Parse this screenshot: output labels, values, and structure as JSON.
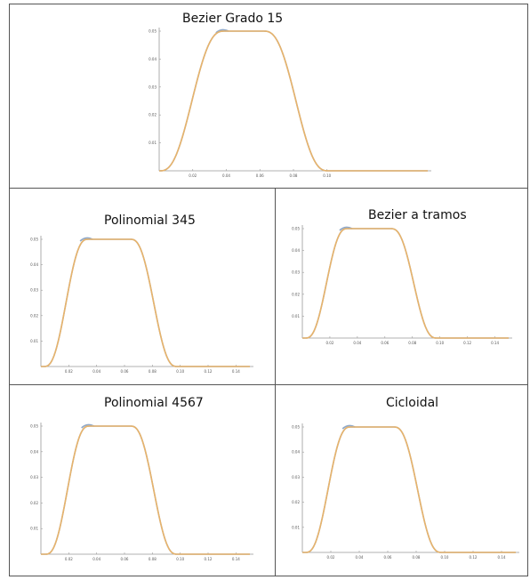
{
  "chart_data": [
    {
      "type": "line",
      "title": "Bezier Grado 15",
      "xlim": [
        0,
        0.16
      ],
      "ylim": [
        0,
        0.05
      ],
      "x_ticks": [
        0.02,
        0.04,
        0.06,
        0.08,
        0.1
      ],
      "y_ticks": [
        0.01,
        0.02,
        0.03,
        0.04,
        0.05
      ],
      "x_tick_labels": [
        "0.02",
        "0.04",
        "0.06",
        "0.08",
        "0.10"
      ],
      "y_tick_labels": [
        "0.01",
        "0.02",
        "0.03",
        "0.04",
        "0.05"
      ],
      "profile": {
        "rise_start": 0.0,
        "rise_end": 0.039,
        "dwell_end": 0.062,
        "return_end": 0.101,
        "x_end": 0.16
      },
      "series": [
        {
          "values_desc": "rise-dwell-return",
          "color": "#e8b36a"
        },
        {
          "color": "#8fa8c8"
        }
      ]
    },
    {
      "type": "line",
      "title": "Polinomial 345",
      "xlim": [
        0,
        0.15
      ],
      "ylim": [
        0,
        0.05
      ],
      "x_ticks": [
        0.02,
        0.04,
        0.06,
        0.08,
        0.1,
        0.12,
        0.14
      ],
      "y_ticks": [
        0.01,
        0.02,
        0.03,
        0.04,
        0.05
      ],
      "x_tick_labels": [
        "0.02",
        "0.04",
        "0.06",
        "0.08",
        "0.10",
        "0.12",
        "0.14"
      ],
      "y_tick_labels": [
        "0.01",
        "0.02",
        "0.03",
        "0.04",
        "0.05"
      ],
      "profile": {
        "rise_start": 0.002,
        "rise_end": 0.034,
        "dwell_end": 0.064,
        "return_end": 0.098,
        "x_end": 0.15
      },
      "series": [
        {
          "color": "#e8b36a"
        },
        {
          "color": "#8fa8c8"
        }
      ]
    },
    {
      "type": "line",
      "title": "Bezier a tramos",
      "xlim": [
        0,
        0.15
      ],
      "ylim": [
        0,
        0.05
      ],
      "x_ticks": [
        0.02,
        0.04,
        0.06,
        0.08,
        0.1,
        0.12,
        0.14
      ],
      "y_ticks": [
        0.01,
        0.02,
        0.03,
        0.04,
        0.05
      ],
      "x_tick_labels": [
        "0.02",
        "0.04",
        "0.06",
        "0.08",
        "0.10",
        "0.12",
        "0.14"
      ],
      "y_tick_labels": [
        "0.01",
        "0.02",
        "0.03",
        "0.04",
        "0.05"
      ],
      "profile": {
        "rise_start": 0.002,
        "rise_end": 0.033,
        "dwell_end": 0.064,
        "return_end": 0.098,
        "x_end": 0.15
      },
      "series": [
        {
          "color": "#e8b36a"
        },
        {
          "color": "#8fa8c8"
        }
      ]
    },
    {
      "type": "line",
      "title": "Polinomial 4567",
      "xlim": [
        0,
        0.15
      ],
      "ylim": [
        0,
        0.05
      ],
      "x_ticks": [
        0.02,
        0.04,
        0.06,
        0.08,
        0.1,
        0.12,
        0.14
      ],
      "y_ticks": [
        0.01,
        0.02,
        0.03,
        0.04,
        0.05
      ],
      "x_tick_labels": [
        "0.02",
        "0.04",
        "0.06",
        "0.08",
        "0.10",
        "0.12",
        "0.14"
      ],
      "y_tick_labels": [
        "0.01",
        "0.02",
        "0.03",
        "0.04",
        "0.05"
      ],
      "profile": {
        "rise_start": 0.003,
        "rise_end": 0.035,
        "dwell_end": 0.064,
        "return_end": 0.098,
        "x_end": 0.15
      },
      "series": [
        {
          "color": "#e8b36a"
        },
        {
          "color": "#8fa8c8"
        }
      ]
    },
    {
      "type": "line",
      "title": "Cicloidal",
      "xlim": [
        0,
        0.15
      ],
      "ylim": [
        0,
        0.05
      ],
      "x_ticks": [
        0.02,
        0.04,
        0.06,
        0.08,
        0.1,
        0.12,
        0.14
      ],
      "y_ticks": [
        0.01,
        0.02,
        0.03,
        0.04,
        0.05
      ],
      "x_tick_labels": [
        "0.02",
        "0.04",
        "0.06",
        "0.08",
        "0.10",
        "0.12",
        "0.14"
      ],
      "y_tick_labels": [
        "0.01",
        "0.02",
        "0.03",
        "0.04",
        "0.05"
      ],
      "profile": {
        "rise_start": 0.002,
        "rise_end": 0.034,
        "dwell_end": 0.064,
        "return_end": 0.098,
        "x_end": 0.15
      },
      "series": [
        {
          "color": "#e8b36a"
        },
        {
          "color": "#8fa8c8"
        }
      ]
    }
  ]
}
